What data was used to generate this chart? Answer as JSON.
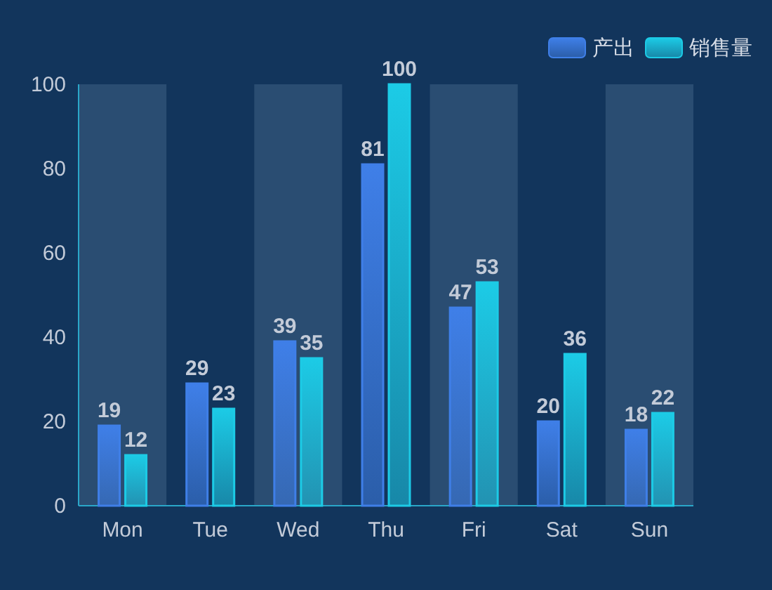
{
  "chart_data": {
    "type": "bar",
    "categories": [
      "Mon",
      "Tue",
      "Wed",
      "Thu",
      "Fri",
      "Sat",
      "Sun"
    ],
    "series": [
      {
        "name": "产出",
        "color": "#3f7fe8",
        "values": [
          19,
          29,
          39,
          81,
          47,
          20,
          18
        ]
      },
      {
        "name": "销售量",
        "color": "#1ccbe6",
        "values": [
          12,
          23,
          35,
          100,
          53,
          36,
          22
        ]
      }
    ],
    "ylim": [
      0,
      100
    ],
    "yticks": [
      0,
      20,
      40,
      60,
      80,
      100
    ],
    "legend": "top right",
    "data_labels": true,
    "bands": [
      {
        "axis": "x",
        "from": "Mon",
        "to": "Mon",
        "color": "#2a4d72"
      },
      {
        "axis": "x",
        "from": "Wed",
        "to": "Wed",
        "color": "#2a4d72"
      },
      {
        "axis": "x",
        "from": "Fri",
        "to": "Fri",
        "color": "#2a4d72"
      },
      {
        "axis": "x",
        "from": "Sun",
        "to": "Sun",
        "color": "#2a4d72"
      }
    ]
  }
}
